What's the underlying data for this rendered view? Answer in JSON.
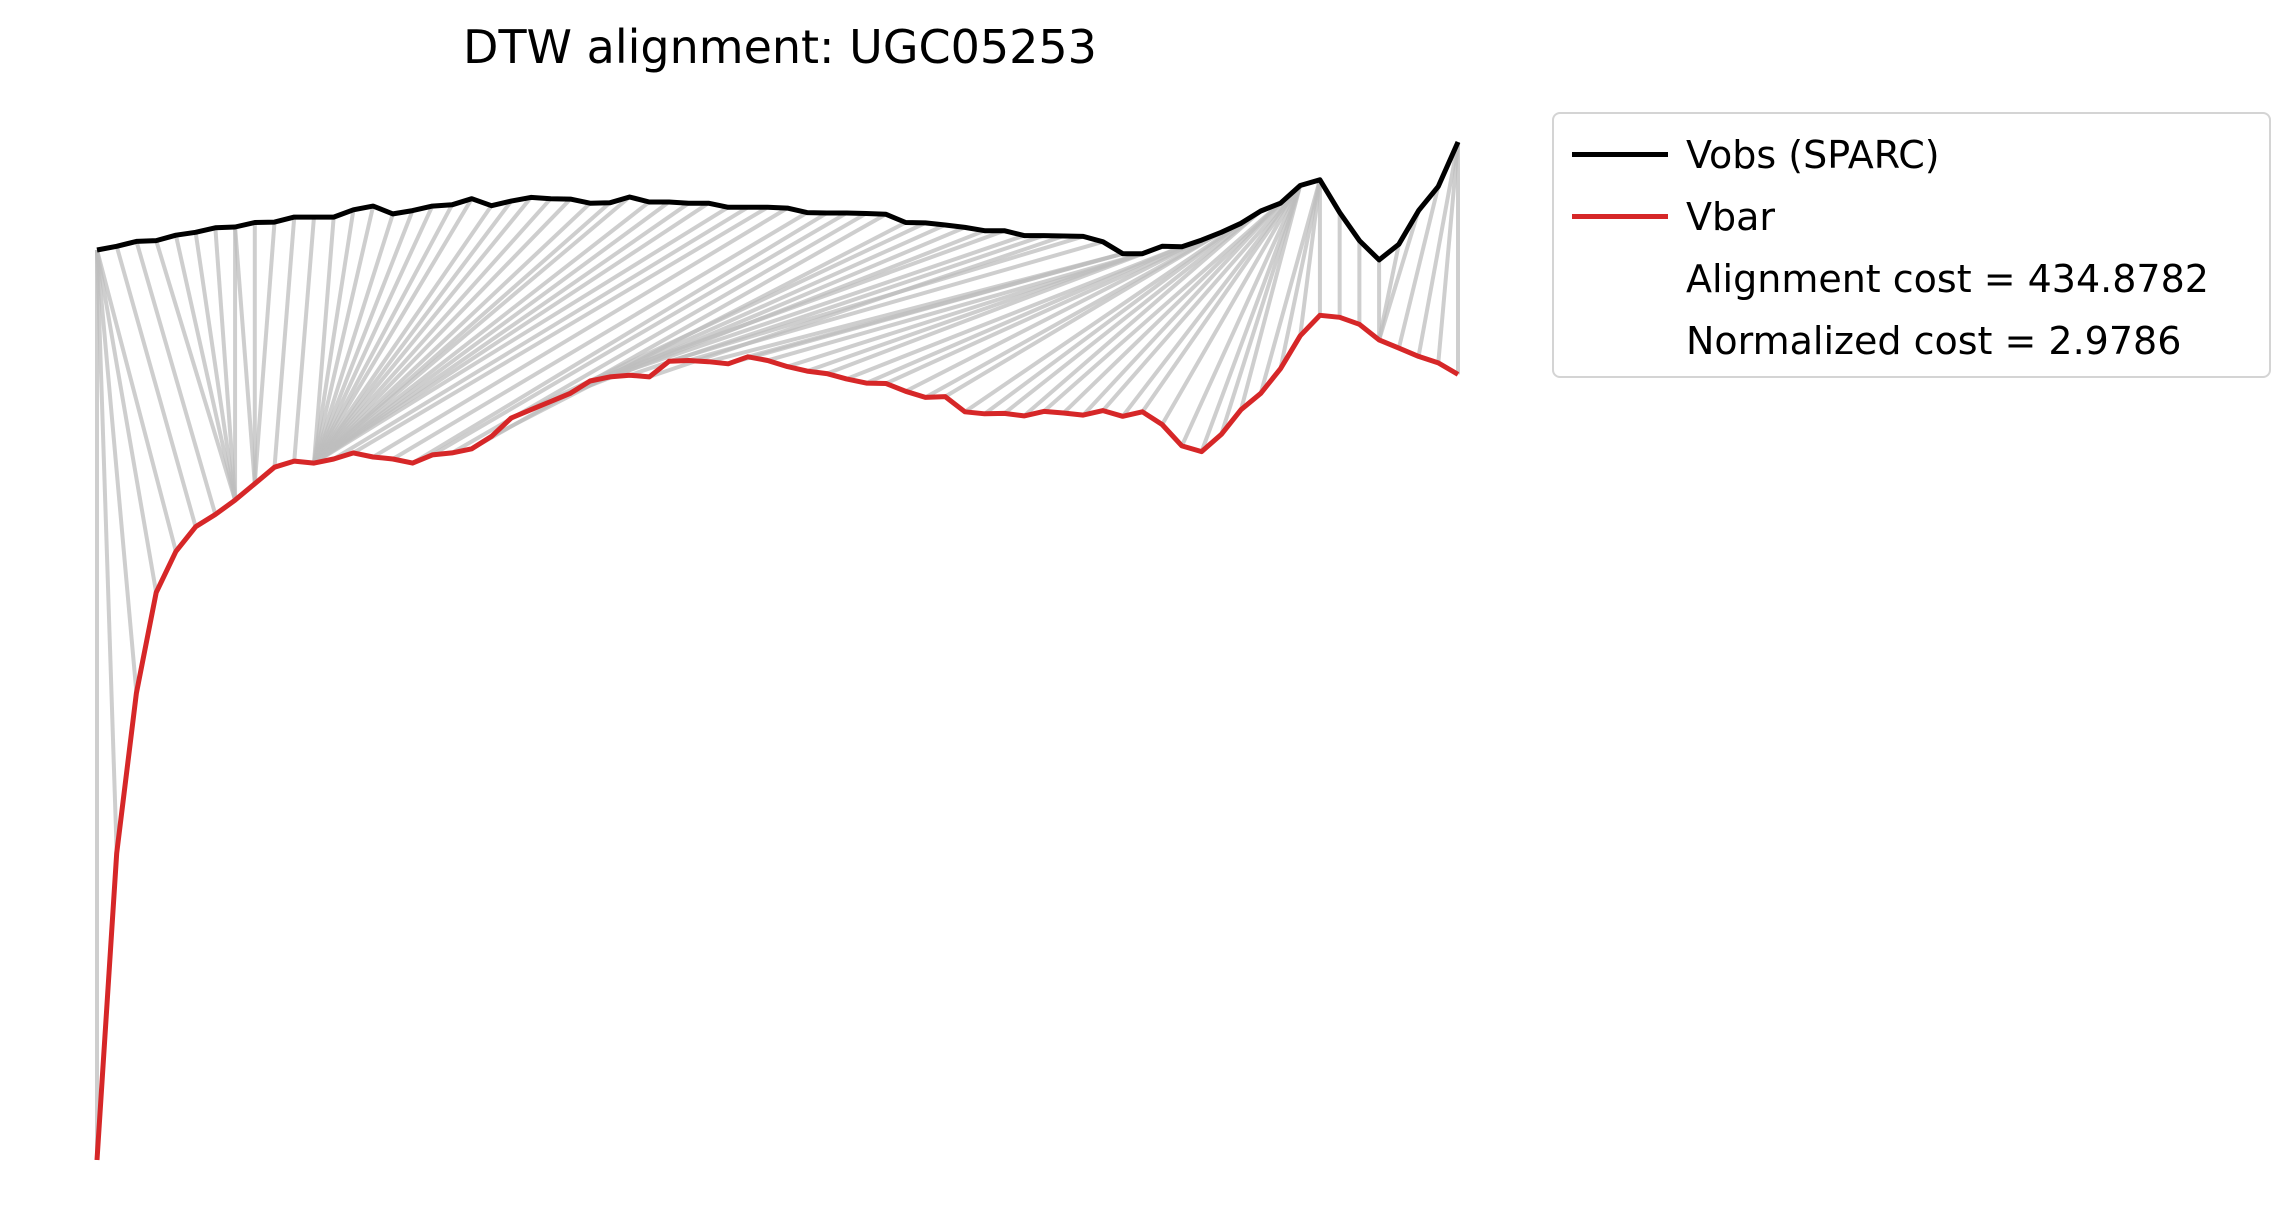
{
  "chart_data": {
    "type": "line",
    "title": "DTW alignment: UGC05253",
    "xlabel": "",
    "ylabel": "",
    "axes": "off",
    "grid": false,
    "legend_position": "outside-right",
    "series": [
      {
        "name": "Vobs (SPARC)",
        "color": "#000000",
        "values": [
          0.9,
          1.8,
          3.0,
          3.2,
          4.5,
          5.2,
          6.3,
          6.5,
          7.6,
          7.7,
          8.9,
          8.9,
          8.9,
          10.7,
          11.6,
          9.7,
          10.5,
          11.6,
          11.9,
          13.4,
          11.7,
          12.8,
          13.7,
          13.4,
          13.3,
          12.3,
          12.4,
          13.8,
          12.6,
          12.6,
          12.3,
          12.3,
          11.3,
          11.3,
          11.3,
          11.1,
          10.0,
          9.9,
          9.9,
          9.8,
          9.6,
          7.6,
          7.5,
          7.0,
          6.4,
          5.6,
          5.6,
          4.4,
          4.4,
          4.3,
          4.2,
          2.9,
          0.0,
          0.0,
          1.8,
          1.7,
          3.3,
          5.2,
          7.4,
          10.4,
          12.3,
          16.6,
          18.0,
          10.0,
          3.2,
          -1.5,
          2.3,
          10.5,
          16.4,
          27.2
        ]
      },
      {
        "name": "Vbar",
        "color": "#d62728",
        "values": [
          -220.7,
          -146.0,
          -107.0,
          -82.5,
          -72.5,
          -66.5,
          -63.5,
          -60.0,
          -56.0,
          -52.0,
          -50.5,
          -51.0,
          -50.0,
          -48.5,
          -49.5,
          -50.0,
          -51.0,
          -49.0,
          -48.5,
          -47.5,
          -44.5,
          -40.0,
          -38.0,
          -36.0,
          -34.0,
          -31.0,
          -30.0,
          -29.6,
          -30.0,
          -26.2,
          -26.0,
          -26.3,
          -26.8,
          -25.1,
          -26.0,
          -27.5,
          -28.6,
          -29.2,
          -30.5,
          -31.5,
          -31.6,
          -33.5,
          -35.0,
          -34.8,
          -38.5,
          -39.0,
          -38.9,
          -39.5,
          -38.4,
          -38.8,
          -39.3,
          -38.2,
          -39.6,
          -38.5,
          -41.6,
          -46.8,
          -48.2,
          -44.0,
          -38.0,
          -34.0,
          -28.0,
          -20.0,
          -15.0,
          -15.5,
          -17.2,
          -21.0,
          -23.0,
          -25.0,
          -26.6,
          -29.4
        ]
      }
    ],
    "annotations": [
      "Alignment cost = 434.8782",
      "Normalized cost = 2.9786"
    ],
    "alignment_pairs": [
      [
        0,
        0
      ],
      [
        0,
        1
      ],
      [
        0,
        2
      ],
      [
        0,
        3
      ],
      [
        0,
        4
      ],
      [
        1,
        5
      ],
      [
        2,
        6
      ],
      [
        3,
        7
      ],
      [
        4,
        7
      ],
      [
        5,
        7
      ],
      [
        6,
        7
      ],
      [
        7,
        7
      ],
      [
        7,
        8
      ],
      [
        8,
        8
      ],
      [
        9,
        8
      ],
      [
        10,
        9
      ],
      [
        11,
        10
      ],
      [
        12,
        11
      ],
      [
        13,
        11
      ],
      [
        14,
        11
      ],
      [
        15,
        11
      ],
      [
        16,
        11
      ],
      [
        17,
        11
      ],
      [
        18,
        11
      ],
      [
        19,
        11
      ],
      [
        20,
        11
      ],
      [
        21,
        11
      ],
      [
        22,
        11
      ],
      [
        23,
        11
      ],
      [
        24,
        11
      ],
      [
        25,
        11
      ],
      [
        26,
        11
      ],
      [
        27,
        11
      ],
      [
        28,
        11
      ],
      [
        29,
        11
      ],
      [
        30,
        11
      ],
      [
        31,
        11
      ],
      [
        32,
        11
      ],
      [
        33,
        12
      ],
      [
        34,
        13
      ],
      [
        35,
        14
      ],
      [
        36,
        15
      ],
      [
        37,
        16
      ],
      [
        38,
        17
      ],
      [
        39,
        18
      ],
      [
        40,
        19
      ],
      [
        41,
        20
      ],
      [
        42,
        21
      ],
      [
        43,
        22
      ],
      [
        44,
        23
      ],
      [
        45,
        24
      ],
      [
        46,
        25
      ],
      [
        47,
        26
      ],
      [
        48,
        27
      ],
      [
        49,
        28
      ],
      [
        50,
        29
      ],
      [
        51,
        30
      ],
      [
        52,
        31
      ],
      [
        52,
        32
      ],
      [
        52,
        33
      ],
      [
        53,
        34
      ],
      [
        53,
        35
      ],
      [
        54,
        36
      ],
      [
        54,
        37
      ],
      [
        55,
        38
      ],
      [
        55,
        39
      ],
      [
        56,
        40
      ],
      [
        56,
        41
      ],
      [
        57,
        42
      ],
      [
        57,
        43
      ],
      [
        58,
        44
      ],
      [
        58,
        45
      ],
      [
        59,
        46
      ],
      [
        59,
        47
      ],
      [
        60,
        48
      ],
      [
        60,
        49
      ],
      [
        60,
        50
      ],
      [
        61,
        51
      ],
      [
        61,
        52
      ],
      [
        61,
        53
      ],
      [
        61,
        54
      ],
      [
        61,
        55
      ],
      [
        61,
        56
      ],
      [
        61,
        57
      ],
      [
        61,
        58
      ],
      [
        62,
        59
      ],
      [
        62,
        60
      ],
      [
        62,
        61
      ],
      [
        62,
        62
      ],
      [
        63,
        63
      ],
      [
        64,
        64
      ],
      [
        65,
        65
      ],
      [
        66,
        65
      ],
      [
        67,
        65
      ],
      [
        68,
        66
      ],
      [
        69,
        67
      ],
      [
        69,
        68
      ],
      [
        69,
        69
      ]
    ]
  }
}
